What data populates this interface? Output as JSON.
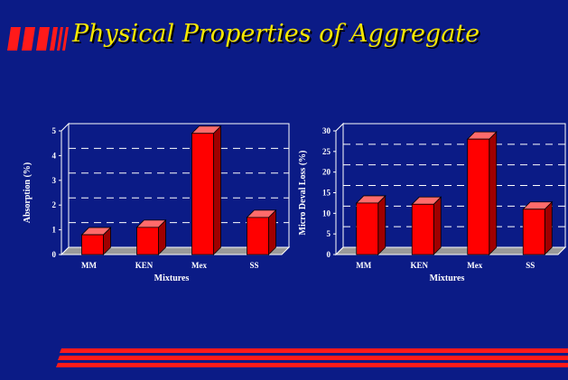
{
  "slide": {
    "title": "Physical Properties of Aggregate",
    "colors": {
      "background": "#0b1b86",
      "title": "#f5e600",
      "bars": "#ff0000",
      "accent_stripes": "#ff1a1a"
    }
  },
  "chart_data": [
    {
      "type": "bar",
      "categories": [
        "MM",
        "KEN",
        "Mex",
        "SS"
      ],
      "values": [
        0.8,
        1.1,
        4.9,
        1.5
      ],
      "xlabel": "Mixtures",
      "ylabel": "Absorption (%)",
      "ylim": [
        0,
        5
      ],
      "yticks": [
        0,
        1,
        2,
        3,
        4,
        5
      ],
      "grid": true,
      "style": "3d"
    },
    {
      "type": "bar",
      "categories": [
        "MM",
        "KEN",
        "Mex",
        "SS"
      ],
      "values": [
        12.5,
        12.2,
        28,
        11
      ],
      "xlabel": "Mixtures",
      "ylabel": "Micro Deval Loss (%)",
      "ylim": [
        0,
        30
      ],
      "yticks": [
        0,
        5,
        10,
        15,
        20,
        25,
        30
      ],
      "grid": true,
      "style": "3d"
    }
  ]
}
